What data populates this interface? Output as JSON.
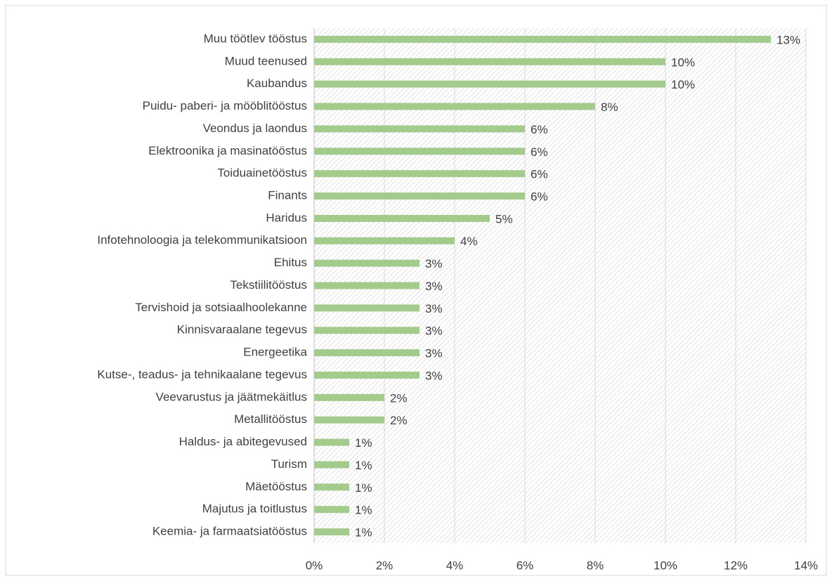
{
  "chart_data": {
    "type": "bar",
    "orientation": "horizontal",
    "categories": [
      "Muu töötlev tööstus",
      "Muud teenused",
      "Kaubandus",
      "Puidu- paberi- ja mööblitööstus",
      "Veondus ja laondus",
      "Elektroonika ja masinatööstus",
      "Toiduainetööstus",
      "Finants",
      "Haridus",
      "Infotehnoloogia ja telekommunikatsioon",
      "Ehitus",
      "Tekstiilitööstus",
      "Tervishoid ja sotsiaalhoolekanne",
      "Kinnisvaraalane tegevus",
      "Energeetika",
      "Kutse-, teadus- ja tehnikaalane tegevus",
      "Veevarustus ja jäätmekäitlus",
      "Metallitööstus",
      "Haldus- ja abitegevused",
      "Turism",
      "Mäetööstus",
      "Majutus ja toitlustus",
      "Keemia- ja farmaatsiatööstus"
    ],
    "values": [
      13,
      10,
      10,
      8,
      6,
      6,
      6,
      6,
      5,
      4,
      3,
      3,
      3,
      3,
      3,
      3,
      2,
      2,
      1,
      1,
      1,
      1,
      1
    ],
    "value_labels": [
      "13%",
      "10%",
      "10%",
      "8%",
      "6%",
      "6%",
      "6%",
      "6%",
      "5%",
      "4%",
      "3%",
      "3%",
      "3%",
      "3%",
      "3%",
      "3%",
      "2%",
      "2%",
      "1%",
      "1%",
      "1%",
      "1%",
      "1%"
    ],
    "color": "#a3cc8c",
    "xlim": [
      0,
      14
    ],
    "xticks": [
      {
        "value": 0,
        "label": "0%"
      },
      {
        "value": 2,
        "label": "2%"
      },
      {
        "value": 4,
        "label": "4%"
      },
      {
        "value": 6,
        "label": "6%"
      },
      {
        "value": 8,
        "label": "8%"
      },
      {
        "value": 10,
        "label": "10%"
      },
      {
        "value": 12,
        "label": "12%"
      },
      {
        "value": 14,
        "label": "14%"
      }
    ],
    "grid": true
  }
}
